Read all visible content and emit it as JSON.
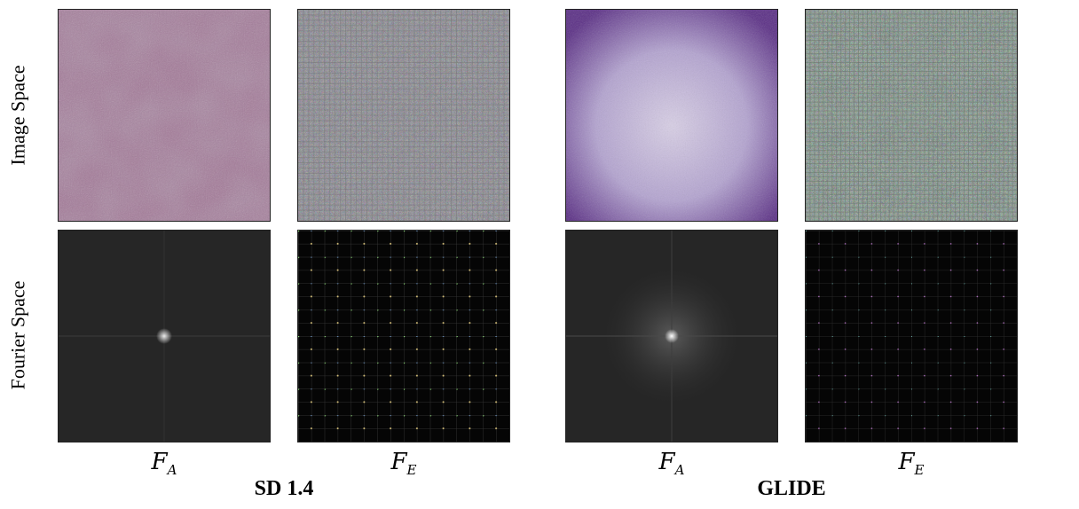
{
  "row_labels": {
    "image": "Image Space",
    "fourier": "Fourier Space"
  },
  "columns": [
    {
      "symbol": "F",
      "subscript": "A"
    },
    {
      "symbol": "F",
      "subscript": "E"
    },
    {
      "symbol": "F",
      "subscript": "A"
    },
    {
      "symbol": "F",
      "subscript": "E"
    }
  ],
  "groups": {
    "left": "SD 1.4",
    "right": "GLIDE"
  },
  "colors": {
    "sd_image_base": "#a47a99",
    "glide_image_base": "#9b88bd",
    "noise_gray": "#8c8c8c",
    "fourier_dark": "#262626",
    "fourier_black": "#050505"
  }
}
